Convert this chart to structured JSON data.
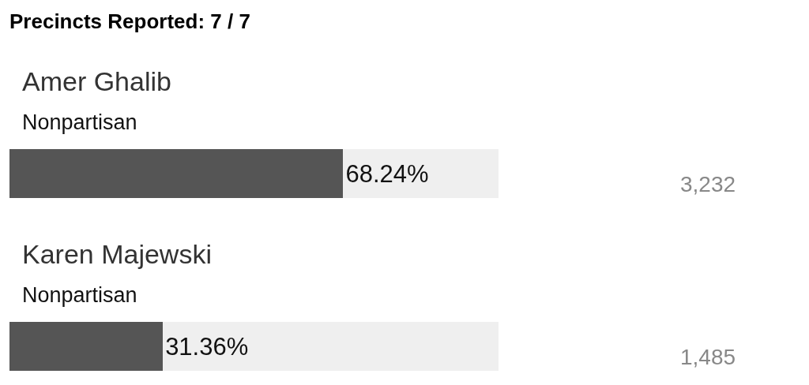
{
  "chart_data": {
    "type": "bar",
    "orientation": "horizontal",
    "title": "Precincts Reported: 7 / 7",
    "categories": [
      "Amer Ghalib",
      "Karen Majewski"
    ],
    "values": [
      68.24,
      31.36
    ],
    "color": "#555555",
    "value_labels": [
      "68.24%",
      "31.36%"
    ],
    "xlim": [
      0,
      100
    ],
    "tick_labels": false,
    "annotations": [
      "Nonpartisan",
      "3,232",
      "Nonpartisan",
      "1,485"
    ]
  }
}
